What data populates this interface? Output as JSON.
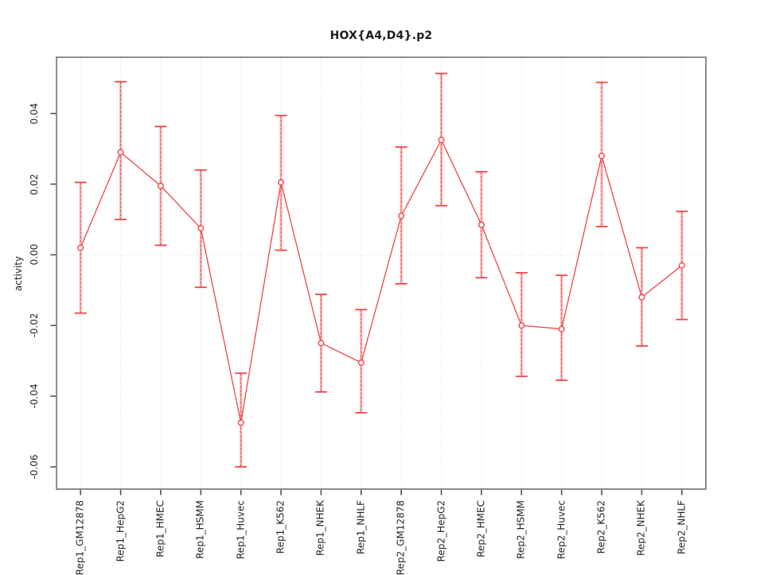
{
  "chart_data": {
    "type": "line",
    "title": "HOX{A4,D4}.p2",
    "ylabel": "activity",
    "xlabel": "",
    "categories": [
      "Rep1_GM12878",
      "Rep1_HepG2",
      "Rep1_HMEC",
      "Rep1_HSMM",
      "Rep1_Huvec",
      "Rep1_K562",
      "Rep1_NHEK",
      "Rep1_NHLF",
      "Rep2_GM12878",
      "Rep2_HepG2",
      "Rep2_HMEC",
      "Rep2_HSMM",
      "Rep2_Huvec",
      "Rep2_K562",
      "Rep2_NHEK",
      "Rep2_NHLF"
    ],
    "series": [
      {
        "name": "activity",
        "values": [
          0.002,
          0.029,
          0.0195,
          0.0075,
          -0.0475,
          0.0205,
          -0.025,
          -0.0305,
          0.011,
          0.0325,
          0.0085,
          -0.02,
          -0.021,
          0.028,
          -0.012,
          -0.003
        ],
        "upper": [
          0.0205,
          0.049,
          0.0363,
          0.024,
          -0.0335,
          0.0394,
          -0.0112,
          -0.0155,
          0.0305,
          0.0513,
          0.0235,
          -0.0051,
          -0.0058,
          0.0488,
          0.002,
          0.0123
        ],
        "lower": [
          -0.0165,
          0.01,
          0.0027,
          -0.0092,
          -0.06,
          0.0013,
          -0.0388,
          -0.0447,
          -0.0082,
          0.0139,
          -0.0065,
          -0.0344,
          -0.0355,
          0.008,
          -0.0258,
          -0.0183
        ]
      }
    ],
    "yticks": {
      "values": [
        0.04,
        0.02,
        0,
        -0.02,
        -0.04,
        -0.06
      ],
      "labels": [
        "0.04",
        "0.02",
        "0.00",
        "-0.02",
        "-0.04",
        "-0.06"
      ]
    },
    "ylim": [
      -0.0663,
      0.0559
    ],
    "zero_line": true,
    "grid": {
      "vertical_dotted": true,
      "horizontal_zero_dotted": true
    },
    "legend": "none",
    "marker": "open-circle",
    "colors": {
      "series": "#ee4545",
      "errorbar_band": "rgba(242,100,100,0.5)",
      "errorbar_dash": "rgba(236,72,72,0.85)",
      "grid": "#d9d9d9",
      "axis_box": "#8d8d8d",
      "tick": "#4d4d4d",
      "text": "#262626"
    }
  }
}
